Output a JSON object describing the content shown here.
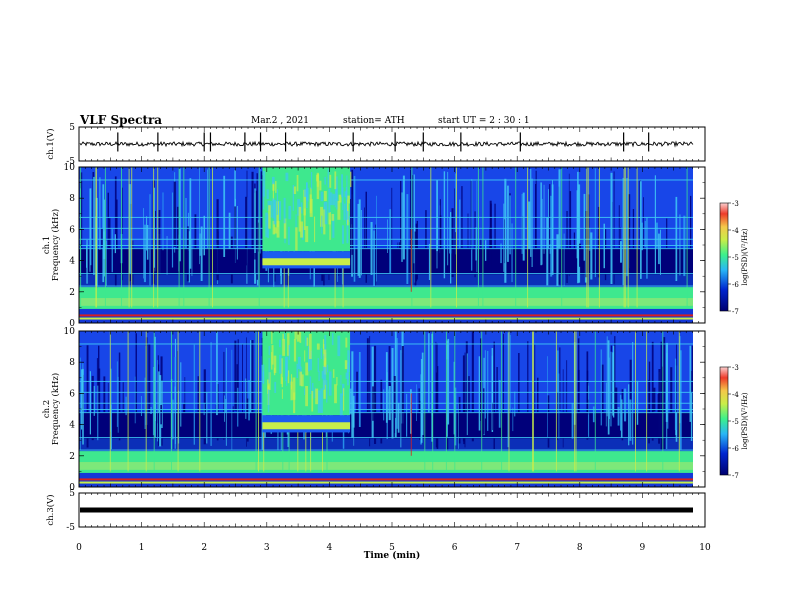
{
  "header": {
    "title": "VLF Spectra",
    "date": "Mar.2  , 2021",
    "station": "station= ATH",
    "start": "start  UT  =   2  : 30 : 1"
  },
  "chart_data": [
    {
      "type": "line",
      "panel": "ch1-waveform",
      "ylabel": "ch.1(V)",
      "ylim": [
        -5,
        5
      ],
      "yticks": [
        "5",
        "-5"
      ],
      "xlim": [
        0,
        10
      ],
      "description_values": {
        "baseline": 0,
        "noise_amplitude": 0.6
      },
      "spikes_min": [
        0.62,
        1.26,
        2.0,
        2.1,
        2.65,
        2.9,
        3.3,
        4.38,
        5.05,
        5.5,
        6.1,
        7.05,
        8.7,
        9.1
      ]
    },
    {
      "type": "heatmap",
      "panel": "ch1-spectrogram",
      "ylabel": "ch.1\nFrequency  (kHz)",
      "ylim": [
        0,
        10
      ],
      "yticks": [
        "0",
        "2",
        "4",
        "6",
        "8",
        "10"
      ],
      "xlim": [
        0,
        10
      ],
      "colorbar": {
        "label": "log(PSD)(V²/Hz)",
        "range": [
          -7,
          -3
        ],
        "ticks": [
          "-3",
          "-4",
          "-5",
          "-6",
          "-7"
        ]
      },
      "bright_segment_min": [
        2.93,
        4.33
      ],
      "tone_kHz_in_segment": 4.0
    },
    {
      "type": "heatmap",
      "panel": "ch2-spectrogram",
      "ylabel": "ch.2\nFrequency  (kHz)",
      "ylim": [
        0,
        10
      ],
      "yticks": [
        "0",
        "2",
        "4",
        "6",
        "8",
        "10"
      ],
      "xlim": [
        0,
        10
      ],
      "colorbar": {
        "label": "log(PSD)(V²/Hz)",
        "range": [
          -7,
          -3
        ],
        "ticks": [
          "-3",
          "-4",
          "-5",
          "-6",
          "-7"
        ]
      },
      "bright_segment_min": [
        2.93,
        4.33
      ],
      "tone_kHz_in_segment": 4.0
    },
    {
      "type": "line",
      "panel": "ch3-waveform",
      "ylabel": "ch.3(V)",
      "ylim": [
        -5,
        5
      ],
      "yticks": [
        "5",
        "-5"
      ],
      "xlim": [
        0,
        10
      ],
      "series": [
        {
          "constant": 0
        }
      ]
    }
  ],
  "xaxis": {
    "label": "Time  (min)",
    "ticks": [
      "0",
      "1",
      "2",
      "3",
      "4",
      "5",
      "6",
      "7",
      "8",
      "9",
      "10"
    ],
    "range": [
      0,
      10
    ]
  },
  "colors": {
    "spec_dark": "#00007a",
    "spec_blue": "#0a38e6",
    "spec_cyan": "#3fc8f5",
    "spec_green": "#3ee88e",
    "spec_yellow": "#c8ee4a",
    "spec_red": "#d81f1f"
  }
}
